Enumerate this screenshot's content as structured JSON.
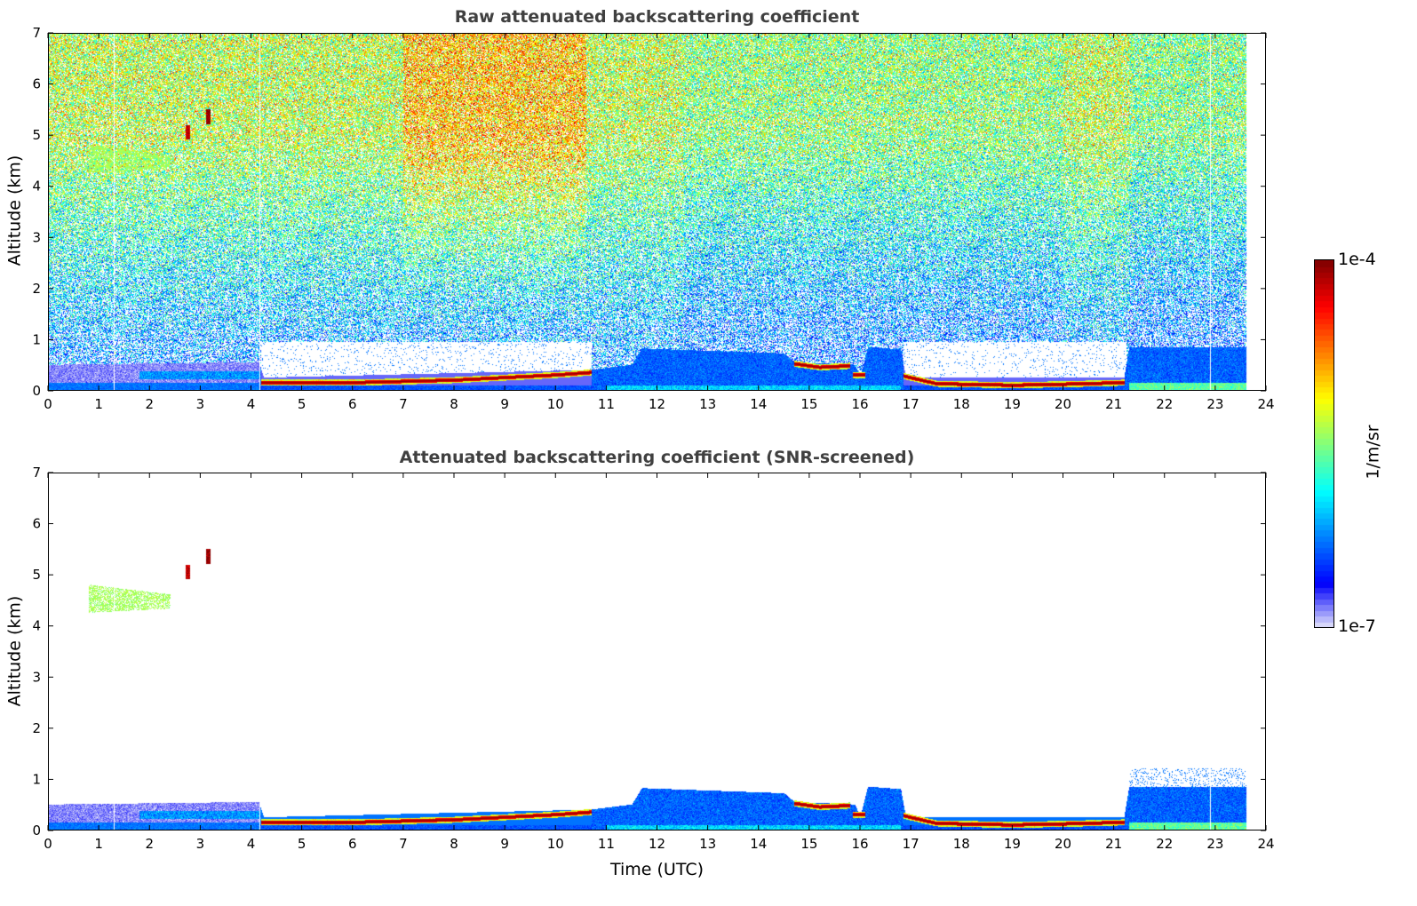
{
  "chart_data": [
    {
      "type": "heatmap",
      "title": "Raw attenuated backscattering coefficient",
      "xlabel": "",
      "ylabel": "Altitude (km)",
      "xlim": [
        0,
        24
      ],
      "ylim": [
        0,
        7
      ],
      "xticks": [
        "0",
        "1",
        "2",
        "3",
        "4",
        "5",
        "6",
        "7",
        "8",
        "9",
        "10",
        "11",
        "12",
        "13",
        "14",
        "15",
        "16",
        "17",
        "18",
        "19",
        "20",
        "21",
        "22",
        "23",
        "24"
      ],
      "yticks": [
        "0",
        "1",
        "2",
        "3",
        "4",
        "5",
        "6",
        "7"
      ],
      "screened": false
    },
    {
      "type": "heatmap",
      "title": "Attenuated backscattering coefficient (SNR-screened)",
      "xlabel": "Time (UTC)",
      "ylabel": "Altitude (km)",
      "xlim": [
        0,
        24
      ],
      "ylim": [
        0,
        7
      ],
      "xticks": [
        "0",
        "1",
        "2",
        "3",
        "4",
        "5",
        "6",
        "7",
        "8",
        "9",
        "10",
        "11",
        "12",
        "13",
        "14",
        "15",
        "16",
        "17",
        "18",
        "19",
        "20",
        "21",
        "22",
        "23",
        "24"
      ],
      "yticks": [
        "0",
        "1",
        "2",
        "3",
        "4",
        "5",
        "6",
        "7"
      ],
      "screened": true
    }
  ],
  "colorbar": {
    "label": "1/m/sr",
    "min_label": "1e-7",
    "max_label": "1e-4",
    "log_min": -7,
    "log_max": -4,
    "colormap": "jet"
  },
  "features": {
    "data_end_time": 23.6,
    "data_gaps": [
      1.3,
      4.17,
      22.9
    ],
    "aerosol_layer_top": [
      [
        0,
        0.5
      ],
      [
        4.15,
        0.55
      ],
      [
        4.25,
        0.25
      ],
      [
        10.7,
        0.4
      ],
      [
        11.5,
        0.5
      ],
      [
        11.7,
        0.82
      ],
      [
        14.5,
        0.72
      ],
      [
        14.7,
        0.55
      ],
      [
        15.9,
        0.5
      ],
      [
        16.0,
        0.25
      ],
      [
        16.15,
        0.85
      ],
      [
        16.8,
        0.8
      ],
      [
        16.9,
        0.25
      ],
      [
        21.2,
        0.25
      ],
      [
        21.3,
        0.85
      ],
      [
        23.6,
        0.85
      ]
    ],
    "peak_lines": [
      [
        [
          4.2,
          0.15
        ],
        [
          6,
          0.15
        ],
        [
          8,
          0.2
        ],
        [
          10,
          0.3
        ],
        [
          10.7,
          0.35
        ]
      ],
      [
        [
          14.7,
          0.52
        ],
        [
          15.2,
          0.45
        ],
        [
          15.8,
          0.48
        ]
      ],
      [
        [
          15.85,
          0.3
        ],
        [
          16.1,
          0.3
        ]
      ],
      [
        [
          16.85,
          0.28
        ],
        [
          17.5,
          0.13
        ],
        [
          19,
          0.1
        ],
        [
          20,
          0.12
        ],
        [
          21.2,
          0.15
        ]
      ]
    ],
    "clouds": [
      {
        "t": 2.75,
        "z": 5.05,
        "log_value": -4.2
      },
      {
        "t": 3.15,
        "z": 5.35,
        "log_value": -4.05
      }
    ],
    "lofted_aerosol": {
      "t": [
        0.8,
        2.4
      ],
      "z": [
        4.3,
        4.8
      ],
      "log_value": -5.4
    }
  }
}
